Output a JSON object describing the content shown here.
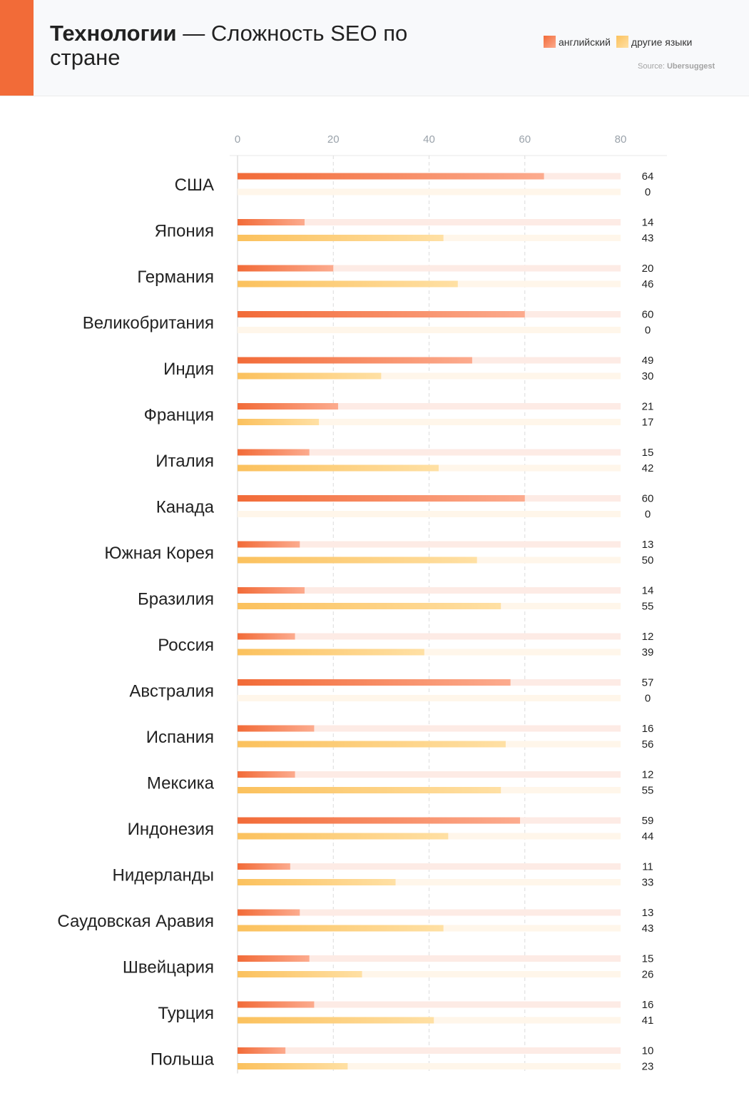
{
  "header": {
    "title_bold": "Технологии",
    "title_rest": " — Сложность SEO по стране",
    "legend": {
      "english_label": "английский",
      "other_label": "другие языки"
    },
    "source_prefix": "Source: ",
    "source_name": "Ubersuggest"
  },
  "colors": {
    "accent": "#f26b38",
    "english_start": "#f26b38",
    "english_end": "#fcab8e",
    "english_track": "#fdebe5",
    "other_start": "#fbc15d",
    "other_end": "#ffe0a4",
    "other_track": "#fff6ea"
  },
  "chart_data": {
    "type": "bar",
    "orientation": "horizontal",
    "xlim": [
      0,
      80
    ],
    "xticks": [
      0,
      20,
      40,
      60,
      80
    ],
    "grid": true,
    "legend_position": "top-right",
    "categories": [
      "США",
      "Япония",
      "Германия",
      "Великобритания",
      "Индия",
      "Франция",
      "Италия",
      "Канада",
      "Южная Корея",
      "Бразилия",
      "Россия",
      "Австралия",
      "Испания",
      "Мексика",
      "Индонезия",
      "Нидерланды",
      "Саудовская Аравия",
      "Швейцария",
      "Турция",
      "Польша"
    ],
    "series": [
      {
        "name": "английский",
        "values": [
          64,
          14,
          20,
          60,
          49,
          21,
          15,
          60,
          13,
          14,
          12,
          57,
          16,
          12,
          59,
          11,
          13,
          15,
          16,
          10
        ]
      },
      {
        "name": "другие языки",
        "values": [
          0,
          43,
          46,
          0,
          30,
          17,
          42,
          0,
          50,
          55,
          39,
          0,
          56,
          55,
          44,
          33,
          43,
          26,
          41,
          23
        ]
      }
    ]
  }
}
